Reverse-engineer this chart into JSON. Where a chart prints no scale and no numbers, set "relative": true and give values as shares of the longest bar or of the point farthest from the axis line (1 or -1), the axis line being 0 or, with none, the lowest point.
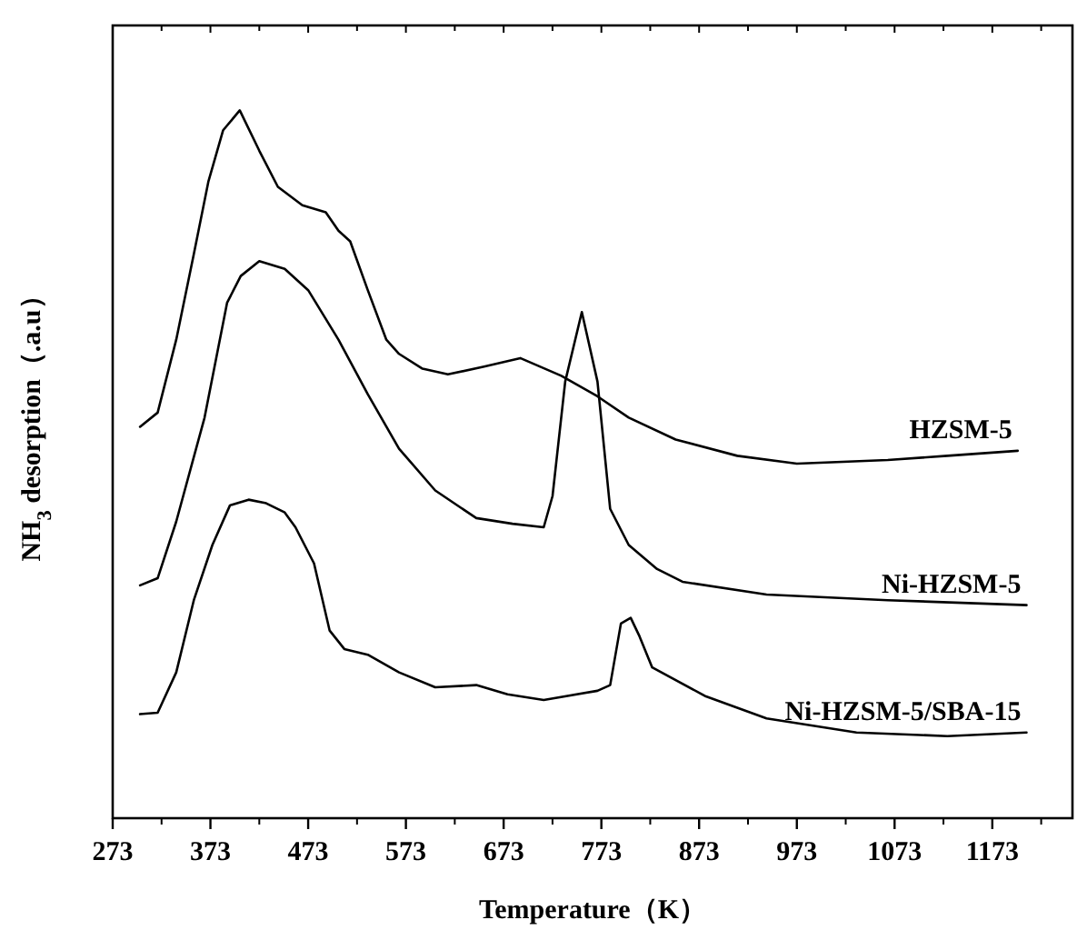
{
  "chart_data": {
    "type": "line",
    "relative": true,
    "xlabel": "Temperature（K）",
    "ylabel": "NH$_{3}$ desorption（.a.u）",
    "xlim": [
      273,
      1255
    ],
    "xticks": [
      273,
      373,
      473,
      573,
      673,
      773,
      873,
      973,
      1073,
      1173
    ],
    "tick_labels": "x",
    "grid": false,
    "legend": false,
    "marker": "none",
    "line_style": "solid",
    "series": [
      {
        "name": "HZSM-5",
        "color": "#000000",
        "x": [
          301,
          319,
          338,
          356,
          371,
          386,
          403,
          423,
          442,
          467,
          491,
          504,
          516,
          534,
          553,
          566,
          590,
          616,
          653,
          690,
          732,
          769,
          801,
          849,
          912,
          973,
          1066,
          1127,
          1199
        ],
        "values": [
          0.553,
          0.573,
          0.676,
          0.797,
          0.9,
          0.972,
          1.0,
          0.943,
          0.892,
          0.866,
          0.856,
          0.83,
          0.815,
          0.746,
          0.676,
          0.656,
          0.635,
          0.627,
          0.638,
          0.65,
          0.625,
          0.596,
          0.566,
          0.535,
          0.512,
          0.501,
          0.506,
          0.512,
          0.519
        ]
      },
      {
        "name": "Ni-HZSM-5",
        "color": "#000000",
        "x": [
          301,
          319,
          338,
          367,
          390,
          404,
          423,
          449,
          473,
          504,
          534,
          566,
          603,
          645,
          682,
          714,
          723,
          736,
          753,
          769,
          782,
          801,
          830,
          856,
          942,
          1066,
          1208
        ],
        "values": [
          0.329,
          0.339,
          0.419,
          0.566,
          0.728,
          0.766,
          0.787,
          0.776,
          0.746,
          0.676,
          0.599,
          0.522,
          0.463,
          0.424,
          0.416,
          0.411,
          0.455,
          0.617,
          0.715,
          0.617,
          0.437,
          0.386,
          0.352,
          0.334,
          0.316,
          0.308,
          0.301
        ]
      },
      {
        "name": "Ni-HZSM-5/SBA-15",
        "color": "#000000",
        "x": [
          301,
          319,
          338,
          356,
          375,
          393,
          412,
          430,
          449,
          460,
          479,
          495,
          510,
          534,
          566,
          603,
          645,
          677,
          714,
          769,
          782,
          793,
          803,
          812,
          825,
          880,
          942,
          1034,
          1127,
          1208
        ],
        "values": [
          0.147,
          0.149,
          0.206,
          0.308,
          0.386,
          0.442,
          0.45,
          0.445,
          0.432,
          0.411,
          0.36,
          0.265,
          0.239,
          0.231,
          0.206,
          0.185,
          0.188,
          0.175,
          0.167,
          0.18,
          0.188,
          0.275,
          0.283,
          0.257,
          0.213,
          0.172,
          0.141,
          0.121,
          0.116,
          0.121
        ]
      }
    ]
  }
}
